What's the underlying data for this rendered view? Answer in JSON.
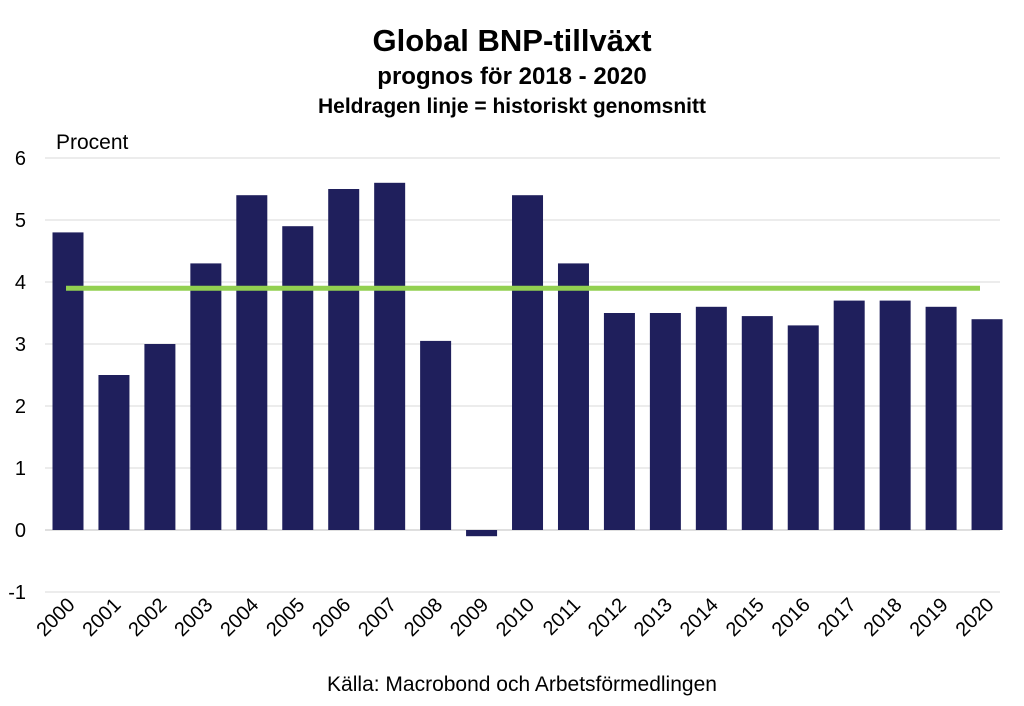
{
  "chart_data": {
    "type": "bar",
    "title": "Global BNP-tillväxt",
    "subtitle": "prognos för 2018 - 2020",
    "subtitle2": "Heldragen linje = historiskt genomsnitt",
    "ylabel": "Procent",
    "source": "Källa: Macrobond och Arbetsförmedlingen",
    "categories": [
      "2000",
      "2001",
      "2002",
      "2003",
      "2004",
      "2005",
      "2006",
      "2007",
      "2008",
      "2009",
      "2010",
      "2011",
      "2012",
      "2013",
      "2014",
      "2015",
      "2016",
      "2017",
      "2018",
      "2019",
      "2020"
    ],
    "values": [
      4.8,
      2.5,
      3.0,
      4.3,
      5.4,
      4.9,
      5.5,
      5.6,
      3.05,
      -0.1,
      5.4,
      4.3,
      3.5,
      3.5,
      3.6,
      3.45,
      3.3,
      3.7,
      3.7,
      3.6,
      3.4
    ],
    "ylim": [
      -1,
      6
    ],
    "yticks": [
      "-1",
      "0",
      "1",
      "2",
      "3",
      "4",
      "5",
      "6"
    ],
    "reference_line": {
      "label": "historiskt genomsnitt",
      "value": 3.9,
      "color": "#92d050"
    },
    "bar_color": "#1f1f5c",
    "grid": true
  }
}
